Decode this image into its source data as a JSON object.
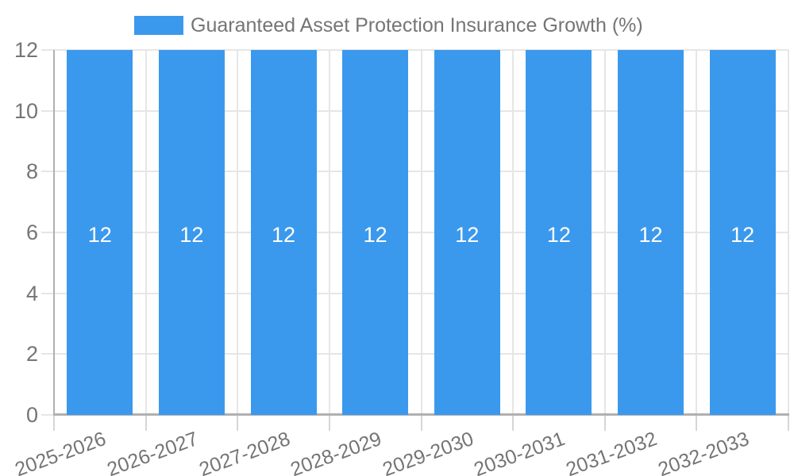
{
  "legend": {
    "label": "Guaranteed Asset Protection Insurance Growth (%)"
  },
  "colors": {
    "bar": "#3b99ed",
    "grid_line": "#e6e6e6",
    "axis_line": "#b0b0b0",
    "tick_line": "#d6d6d6",
    "label_text": "#757575",
    "bar_label_text": "#ffffff",
    "background": "#ffffff"
  },
  "chart_data": {
    "type": "bar",
    "title": "",
    "categories": [
      "2025-2026",
      "2026-2027",
      "2027-2028",
      "2028-2029",
      "2029-2030",
      "2030-2031",
      "2031-2032",
      "2032-2033"
    ],
    "series": [
      {
        "name": "Guaranteed Asset Protection Insurance Growth (%)",
        "values": [
          12,
          12,
          12,
          12,
          12,
          12,
          12,
          12
        ]
      }
    ],
    "data_labels": [
      "12",
      "12",
      "12",
      "12",
      "12",
      "12",
      "12",
      "12"
    ],
    "xlabel": "",
    "ylabel": "",
    "ylim": [
      0,
      12
    ],
    "yticks": [
      0,
      2,
      4,
      6,
      8,
      10,
      12
    ],
    "grid": true,
    "legend_position": "top",
    "x_label_rotation_deg": -20
  }
}
